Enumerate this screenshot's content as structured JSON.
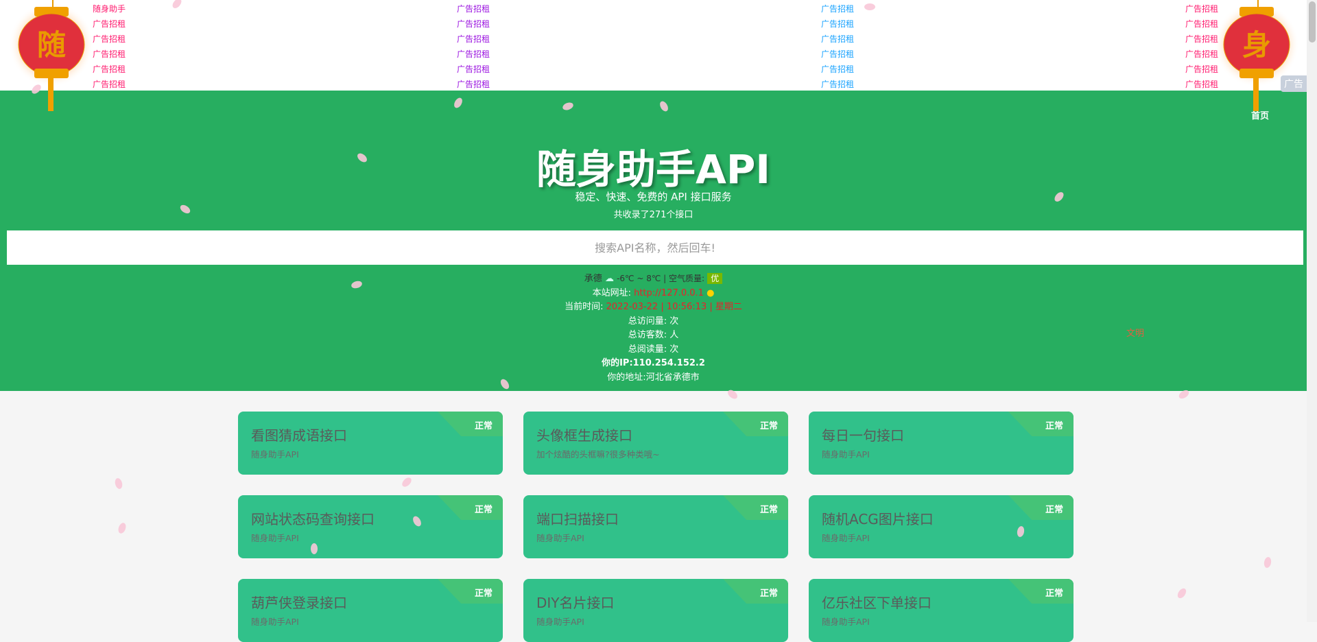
{
  "ads": {
    "columns": [
      {
        "color": "#ff1a6e",
        "items": [
          "随身助手",
          "广告招租",
          "广告招租",
          "广告招租",
          "广告招租",
          "广告招租"
        ]
      },
      {
        "color": "#9b14e0",
        "items": [
          "广告招租",
          "广告招租",
          "广告招租",
          "广告招租",
          "广告招租",
          "广告招租"
        ]
      },
      {
        "color": "#1aa3ff",
        "items": [
          "广告招租",
          "广告招租",
          "广告招租",
          "广告招租",
          "广告招租",
          "广告招租"
        ]
      },
      {
        "color": "#ff1a6e",
        "items": [
          "广告招租",
          "广告招租",
          "广告招租",
          "广告招租",
          "广告招租",
          "广告招租"
        ]
      }
    ],
    "tag": "广告"
  },
  "lanterns": [
    "随",
    "身"
  ],
  "nav": {
    "home": "首页"
  },
  "hero": {
    "title": "随身助手API",
    "subtitle": "稳定、快速、免费的 API 接口服务",
    "count": "共收录了271个接口"
  },
  "search": {
    "placeholder": "搜索API名称，然后回车!"
  },
  "weather": {
    "city": "承德",
    "temp": "-6℃ ~ 8℃ | 空气质量:",
    "aqi": "优"
  },
  "info": {
    "site_label": "本站网址:",
    "site_url": "http://127.0.0.1",
    "time_label": "当前时间:",
    "time": "2022-03-22 | 10:56:13 | 星期二",
    "visits": "总访问量: 次",
    "visitors": "总访客数: 人",
    "reads": "总阅读量: 次",
    "ip": "你的IP:110.254.152.2",
    "address": "你的地址:河北省承德市"
  },
  "wenming": "文明",
  "cards": [
    {
      "title": "看图猜成语接口",
      "desc": "随身助手API",
      "status": "正常"
    },
    {
      "title": "头像框生成接口",
      "desc": "加个炫酷的头框嘛?很多种类哦~",
      "status": "正常"
    },
    {
      "title": "每日一句接口",
      "desc": "随身助手API",
      "status": "正常"
    },
    {
      "title": "网站状态码查询接口",
      "desc": "随身助手API",
      "status": "正常"
    },
    {
      "title": "端口扫描接口",
      "desc": "随身助手API",
      "status": "正常"
    },
    {
      "title": "随机ACG图片接口",
      "desc": "随身助手API",
      "status": "正常"
    },
    {
      "title": "葫芦侠登录接口",
      "desc": "随身助手API",
      "status": "正常"
    },
    {
      "title": "DIY名片接口",
      "desc": "随身助手API",
      "status": "正常"
    },
    {
      "title": "亿乐社区下单接口",
      "desc": "随身助手API",
      "status": "正常"
    }
  ]
}
